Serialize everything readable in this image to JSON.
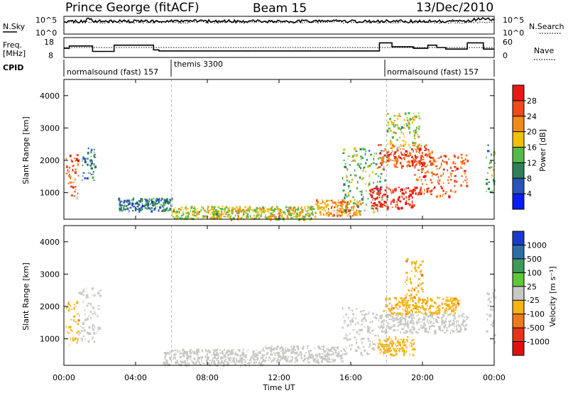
{
  "header": {
    "station": "Prince George (fitACF)",
    "beam": "Beam 15",
    "date": "13/Dec/2010"
  },
  "strips": {
    "nsky": {
      "label": "N.Sky",
      "ticks": [
        "10^5",
        "10^0"
      ],
      "right_label": "N.Search",
      "right_ticks": [
        "10^5",
        "10^0"
      ]
    },
    "freq": {
      "label_line1": "Freq.",
      "label_line2": "[MHz]",
      "ticks": [
        "18",
        "8"
      ],
      "right_label": "Nave",
      "right_ticks": [
        "60",
        "0"
      ]
    },
    "cpid": {
      "label": "CPID",
      "segments": [
        {
          "name": "normalsound (fast) 157",
          "start_h": 0,
          "end_h": 6
        },
        {
          "name": "themis 3300",
          "start_h": 6,
          "end_h": 18
        },
        {
          "name": "normalsound (fast) 157",
          "start_h": 18,
          "end_h": 24
        }
      ]
    }
  },
  "panels": {
    "power": {
      "ylabel": "Slant Range [km]",
      "yticks": [
        "1000",
        "2000",
        "3000",
        "4000"
      ],
      "colorbar_label": "Power [dB]",
      "colorbar_ticks": [
        "4",
        "8",
        "12",
        "16",
        "20",
        "24",
        "28"
      ],
      "colors": [
        "#0a1cf0",
        "#2a52b8",
        "#2f7f5a",
        "#56b848",
        "#f0c00a",
        "#f28a1a",
        "#ee4a1a",
        "#e61a14"
      ]
    },
    "velocity": {
      "ylabel": "Slant Range [km]",
      "yticks": [
        "1000",
        "2000",
        "3000",
        "4000"
      ],
      "colorbar_label": "Velocity [m s⁻¹]",
      "colorbar_ticks": [
        "1000",
        "500",
        "100",
        "25",
        "-25",
        "-100",
        "-500",
        "-1000"
      ],
      "colors": [
        "#1a3cc8",
        "#2e6ea8",
        "#3e9a5a",
        "#5fc63a",
        "#c8c8c4",
        "#f6b418",
        "#f07a18",
        "#e63418",
        "#e01010"
      ]
    }
  },
  "xaxis": {
    "label": "Time UT",
    "ticks": [
      "00:00",
      "04:00",
      "08:00",
      "12:00",
      "16:00",
      "20:00",
      "00:00"
    ]
  },
  "chart_data": {
    "type": "heatmap",
    "title": "Prince George (fitACF)",
    "subtitle": "Beam 15 — 13/Dec/2010",
    "xlabel": "Time UT",
    "ylabel": "Slant Range [km]",
    "x_range_hours": [
      0,
      24
    ],
    "y_range_km": [
      180,
      4500
    ],
    "panels": [
      {
        "quantity": "Power [dB]",
        "scale": [
          0,
          30
        ],
        "echo_regions": [
          {
            "t0": 0.1,
            "t1": 0.8,
            "r0": 700,
            "r1": 2200,
            "value": 24
          },
          {
            "t0": 1.0,
            "t1": 1.7,
            "r0": 1400,
            "r1": 2400,
            "value": 8
          },
          {
            "t0": 3.0,
            "t1": 6.0,
            "r0": 450,
            "r1": 850,
            "value": 8
          },
          {
            "t0": 6.0,
            "t1": 14.0,
            "r0": 200,
            "r1": 600,
            "value": 16
          },
          {
            "t0": 14.0,
            "t1": 16.5,
            "r0": 300,
            "r1": 800,
            "value": 20
          },
          {
            "t0": 15.5,
            "t1": 18.0,
            "r0": 400,
            "r1": 2400,
            "value": 12
          },
          {
            "t0": 17.0,
            "t1": 19.5,
            "r0": 500,
            "r1": 1200,
            "value": 28
          },
          {
            "t0": 17.5,
            "t1": 20.5,
            "r0": 1800,
            "r1": 2500,
            "value": 24
          },
          {
            "t0": 18.0,
            "t1": 19.8,
            "r0": 2400,
            "r1": 3500,
            "value": 16
          },
          {
            "t0": 19.5,
            "t1": 22.5,
            "r0": 900,
            "r1": 2200,
            "value": 24
          },
          {
            "t0": 23.5,
            "t1": 24.0,
            "r0": 900,
            "r1": 2600,
            "value": 12
          }
        ]
      },
      {
        "quantity": "Velocity [m s⁻¹]",
        "scale": [
          -1000,
          1000
        ],
        "echo_regions": [
          {
            "t0": 0.1,
            "t1": 0.8,
            "r0": 700,
            "r1": 2200,
            "value": -300
          },
          {
            "t0": 0.8,
            "t1": 2.0,
            "r0": 900,
            "r1": 2600,
            "value": 0
          },
          {
            "t0": 5.5,
            "t1": 11.0,
            "r0": 200,
            "r1": 700,
            "value": 60
          },
          {
            "t0": 11.0,
            "t1": 15.5,
            "r0": 300,
            "r1": 800,
            "value": -60
          },
          {
            "t0": 15.5,
            "t1": 17.5,
            "r0": 500,
            "r1": 2000,
            "value": 0
          },
          {
            "t0": 17.5,
            "t1": 22.5,
            "r0": 1200,
            "r1": 1800,
            "value": 0
          },
          {
            "t0": 17.8,
            "t1": 22.0,
            "r0": 1800,
            "r1": 2300,
            "value": -300
          },
          {
            "t0": 19.0,
            "t1": 20.0,
            "r0": 2300,
            "r1": 3500,
            "value": -300
          },
          {
            "t0": 17.5,
            "t1": 19.5,
            "r0": 500,
            "r1": 1100,
            "value": -150
          },
          {
            "t0": 23.5,
            "t1": 24.0,
            "r0": 900,
            "r1": 2600,
            "value": 0
          }
        ]
      }
    ],
    "cpid_changes_hours": [
      6,
      18
    ]
  }
}
